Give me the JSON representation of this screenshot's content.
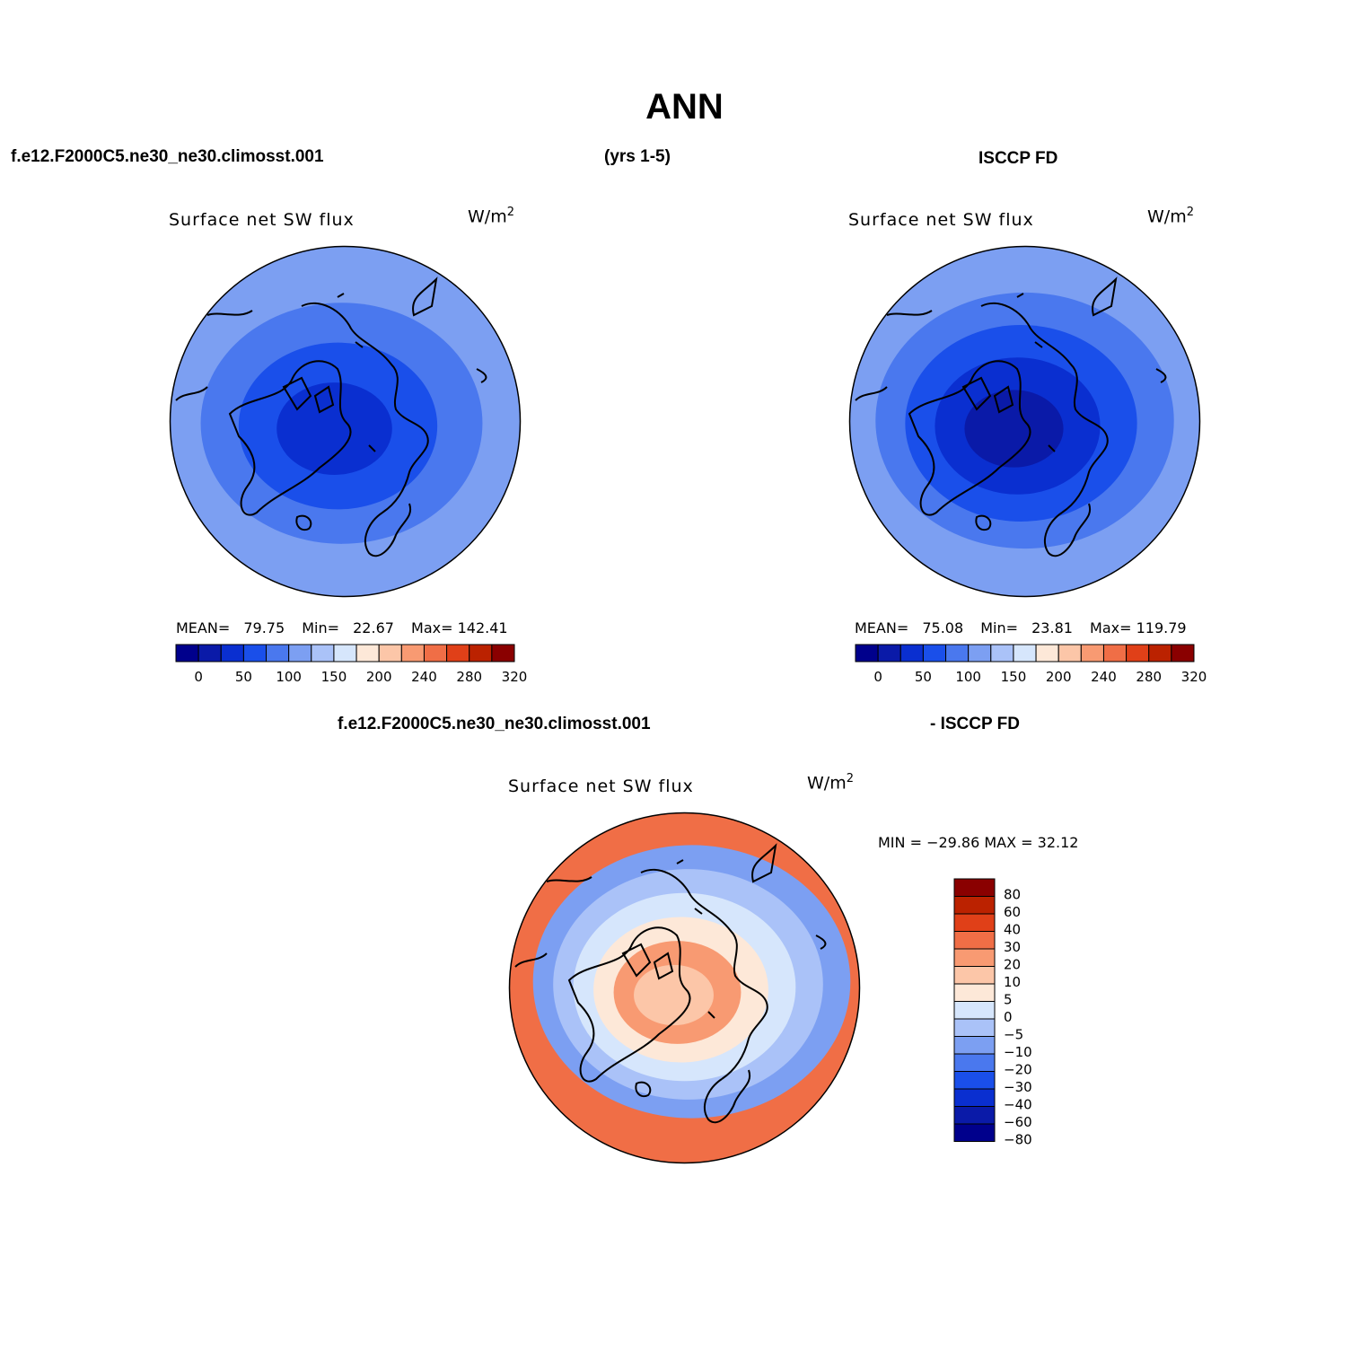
{
  "figure": {
    "title": "ANN",
    "case_name": "f.e12.F2000C5.ne30_ne30.climosst.001",
    "years": "(yrs 1-5)",
    "obs_name": "ISCCP FD",
    "diff_case_name": "f.e12.F2000C5.ne30_ne30.climosst.001",
    "diff_obs_name": "- ISCCP FD"
  },
  "panels": {
    "model": {
      "variable": "Surface net SW flux",
      "units": "W/m",
      "units_exp": "2",
      "mean_label": "MEAN=",
      "mean": "79.75",
      "min_label": "Min=",
      "min": "22.67",
      "max_label": "Max=",
      "max": "142.41"
    },
    "obs": {
      "variable": "Surface net SW flux",
      "units": "W/m",
      "units_exp": "2",
      "mean_label": "MEAN=",
      "mean": "75.08",
      "min_label": "Min=",
      "min": "23.81",
      "max_label": "Max=",
      "max": "119.79"
    },
    "diff": {
      "variable": "Surface net SW flux",
      "units": "W/m",
      "units_exp": "2",
      "minmax": "MIN = −29.86 MAX =  32.12"
    }
  },
  "colorbars": {
    "abs": {
      "colors": [
        "#00008c",
        "#0a1aa8",
        "#0a2fd0",
        "#1a4fea",
        "#4a78ee",
        "#7c9ff2",
        "#aac2f8",
        "#d6e6fc",
        "#fde8d8",
        "#fcc6a8",
        "#f89a72",
        "#f06e46",
        "#e04018",
        "#bb2200",
        "#8a0000"
      ],
      "labels": [
        "0",
        "50",
        "100",
        "150",
        "200",
        "240",
        "280",
        "320"
      ]
    },
    "diff": {
      "colors": [
        "#8a0000",
        "#bb2200",
        "#e04018",
        "#f06e46",
        "#f89a72",
        "#fcc6a8",
        "#fde8d8",
        "#d6e6fc",
        "#aac2f8",
        "#7c9ff2",
        "#4a78ee",
        "#1a4fea",
        "#0a2fd0",
        "#0a1aa8",
        "#00008c"
      ],
      "labels": [
        "80",
        "60",
        "40",
        "30",
        "20",
        "10",
        "5",
        "0",
        "−5",
        "−10",
        "−20",
        "−30",
        "−40",
        "−60",
        "−80"
      ]
    }
  },
  "map_colors": {
    "model": [
      "#0a2fd0",
      "#1a4fea",
      "#4a78ee",
      "#7c9ff2"
    ],
    "obs": [
      "#0a1aa8",
      "#0a2fd0",
      "#1a4fea",
      "#4a78ee",
      "#7c9ff2"
    ],
    "diff": [
      "#fcc6a8",
      "#f89a72",
      "#fde8d8",
      "#d6e6fc",
      "#aac2f8",
      "#7c9ff2",
      "#f06e46"
    ]
  }
}
